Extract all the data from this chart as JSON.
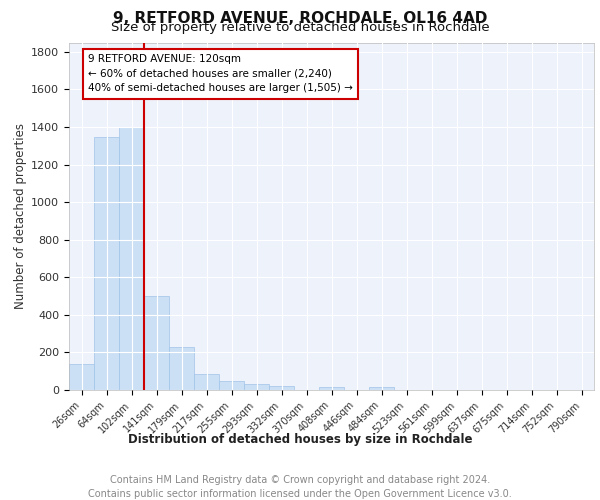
{
  "title1": "9, RETFORD AVENUE, ROCHDALE, OL16 4AD",
  "title2": "Size of property relative to detached houses in Rochdale",
  "xlabel": "Distribution of detached houses by size in Rochdale",
  "ylabel": "Number of detached properties",
  "footer1": "Contains HM Land Registry data © Crown copyright and database right 2024.",
  "footer2": "Contains public sector information licensed under the Open Government Licence v3.0.",
  "bin_labels": [
    "26sqm",
    "64sqm",
    "102sqm",
    "141sqm",
    "179sqm",
    "217sqm",
    "255sqm",
    "293sqm",
    "332sqm",
    "370sqm",
    "408sqm",
    "446sqm",
    "484sqm",
    "523sqm",
    "561sqm",
    "599sqm",
    "637sqm",
    "675sqm",
    "714sqm",
    "752sqm",
    "790sqm"
  ],
  "bar_values": [
    140,
    1345,
    1400,
    500,
    230,
    85,
    50,
    30,
    20,
    0,
    15,
    0,
    15,
    0,
    0,
    0,
    0,
    0,
    0,
    0,
    0
  ],
  "bar_color": "#cce0f5",
  "bar_edge_color": "#a0c4e8",
  "vline_color": "#cc0000",
  "annotation_text": "9 RETFORD AVENUE: 120sqm\n← 60% of detached houses are smaller (2,240)\n40% of semi-detached houses are larger (1,505) →",
  "annotation_box_color": "#ffffff",
  "annotation_box_edge": "#cc0000",
  "ylim": [
    0,
    1850
  ],
  "yticks": [
    0,
    200,
    400,
    600,
    800,
    1000,
    1200,
    1400,
    1600,
    1800
  ],
  "plot_bg_color": "#eef2fa",
  "title1_fontsize": 11,
  "title2_fontsize": 9.5,
  "xlabel_fontsize": 8.5,
  "ylabel_fontsize": 8.5,
  "footer_fontsize": 7,
  "grid_color": "#ffffff",
  "tick_label_fontsize": 7,
  "annot_fontsize": 7.5
}
